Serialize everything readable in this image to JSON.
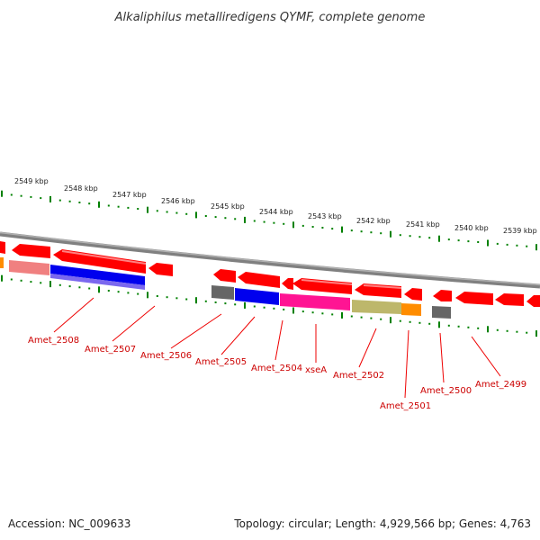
{
  "title": "Alkaliphilus metalliredigens QYMF, complete genome",
  "footer": {
    "accession": "Accession: NC_009633",
    "topology": "Topology: circular; Length: 4,929,566 bp; Genes: 4,763"
  },
  "colors": {
    "forward_gene": "#ff0000",
    "backbone": "#808080",
    "tick": "#008000",
    "label": "#cc0000",
    "feature_blue": "#0000ee",
    "feature_magenta": "#ff1493",
    "feature_olive": "#bdb76b",
    "feature_orange": "#ff8c00",
    "feature_gray": "#666666",
    "feature_salmon": "#f08080",
    "feature_slateblue": "#7b68ee"
  },
  "kbp_labels": [
    "2549 kbp",
    "2548 kbp",
    "2547 kbp",
    "2546 kbp",
    "2545 kbp",
    "2544 kbp",
    "2543 kbp",
    "2542 kbp",
    "2541 kbp",
    "2540 kbp",
    "2539 kbp"
  ],
  "gene_labels": [
    "Amet_2508",
    "Amet_2507",
    "Amet_2506",
    "Amet_2505",
    "Amet_2504",
    "xseA",
    "Amet_2502",
    "Amet_2501",
    "Amet_2500",
    "Amet_2499"
  ]
}
